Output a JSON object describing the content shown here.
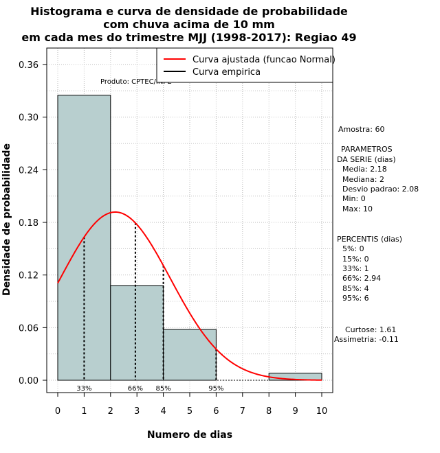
{
  "chart_data": {
    "type": "bar",
    "title_lines": [
      "Histograma e curva de densidade de probabilidade",
      "com chuva acima de 10 mm",
      "em cada mes do trimestre MJJ (1998-2017): Regiao 49"
    ],
    "xlabel": "Numero de dias",
    "ylabel": "Densidade de probabilidade",
    "xlim": [
      0,
      10
    ],
    "ylim": [
      0,
      0.36
    ],
    "x_ticks": [
      0,
      1,
      2,
      3,
      4,
      5,
      6,
      7,
      8,
      9,
      10
    ],
    "y_ticks": [
      0.0,
      0.06,
      0.12,
      0.18,
      0.24,
      0.3,
      0.36
    ],
    "y_tick_labels": [
      "0.00",
      "0.06",
      "0.12",
      "0.18",
      "0.24",
      "0.30",
      "0.36"
    ],
    "grid": true,
    "histogram": [
      {
        "x0": 0,
        "x1": 2,
        "density": 0.325
      },
      {
        "x0": 2,
        "x1": 4,
        "density": 0.108
      },
      {
        "x0": 4,
        "x1": 6,
        "density": 0.058
      },
      {
        "x0": 6,
        "x1": 8,
        "density": 0.0
      },
      {
        "x0": 8,
        "x1": 10,
        "density": 0.008
      }
    ],
    "normal_fit": {
      "name": "Curva ajustada (funcao Normal)",
      "mean": 2.18,
      "sd": 2.08,
      "color": "#ff0000"
    },
    "empirical_curve": {
      "name": "Curva empirica",
      "color": "#000000"
    },
    "percentile_lines": [
      {
        "x": 1,
        "label": "33%"
      },
      {
        "x": 2.94,
        "label": "66%"
      },
      {
        "x": 4,
        "label": "85%"
      },
      {
        "x": 6,
        "label": "95%"
      }
    ],
    "legend_position": "top-right",
    "bar_color": "#b8cfcf",
    "product_note": "Produto: CPTEC/INPE"
  },
  "sidebar": {
    "amostra": "Amostra: 60",
    "param_title_1": "PARAMETROS",
    "param_title_2": "DA SERIE (dias)",
    "media": "Media: 2.18",
    "mediana": "Mediana: 2",
    "desvio": "Desvio padrao: 2.08",
    "min": "Min: 0",
    "max": "Max: 10",
    "perc_title": "PERCENTIS (dias)",
    "p5": "5%: 0",
    "p15": "15%: 0",
    "p33": "33%: 1",
    "p66": "66%: 2.94",
    "p85": "85%: 4",
    "p95": "95%: 6",
    "curtose": "Curtose: 1.61",
    "assimetria": "Assimetria: -0.11"
  }
}
